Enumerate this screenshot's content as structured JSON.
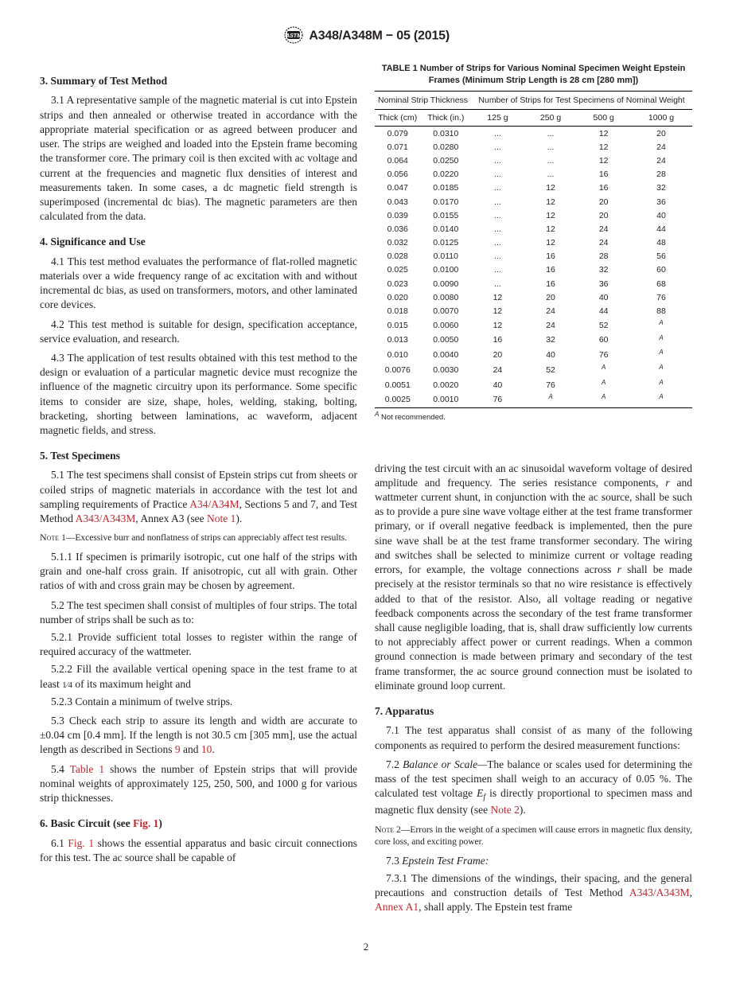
{
  "header": {
    "standard": "A348/A348M − 05 (2015)"
  },
  "left": {
    "s3_head": "3.  Summary of Test Method",
    "s3_1": "3.1  A representative sample of the magnetic material is cut into Epstein strips and then annealed or otherwise treated in accordance with the appropriate material specification or as agreed between producer and user. The strips are weighed and loaded into the Epstein frame becoming the transformer core. The primary coil is then excited with ac voltage and current at the frequencies and magnetic flux densities of interest and measurements taken. In some cases, a dc magnetic field strength is superimposed (incremental dc bias). The magnetic parameters are then calculated from the data.",
    "s4_head": "4.  Significance and Use",
    "s4_1": "4.1  This test method evaluates the performance of flat-rolled magnetic materials over a wide frequency range of ac excitation with and without incremental dc bias, as used on transformers, motors, and other laminated core devices.",
    "s4_2": "4.2 This test method is suitable for design, specification acceptance, service evaluation, and research.",
    "s4_3": "4.3 The application of test results obtained with this test method to the design or evaluation of a particular magnetic device must recognize the influence of the magnetic circuitry upon its performance. Some specific items to consider are size, shape, holes, welding, staking, bolting, bracketing, shorting between laminations, ac waveform, adjacent magnetic fields, and stress.",
    "s5_head": "5.  Test Specimens",
    "s5_1a": "5.1 The test specimens shall consist of Epstein strips cut from sheets or coiled strips of magnetic materials in accordance with the test lot and sampling requirements of Practice ",
    "s5_1_ref1": "A34/A34M",
    "s5_1b": ", Sections 5 and 7, and Test Method ",
    "s5_1_ref2": "A343/A343M",
    "s5_1c": ", Annex A3 (see ",
    "s5_1_ref3": "Note 1",
    "s5_1d": ").",
    "note1_label": "Note",
    "note1": " 1—Excessive burr and nonflatness of strips can appreciably affect test results.",
    "s5_1_1": "5.1.1 If specimen is primarily isotropic, cut one half of the strips with grain and one-half cross grain. If anisotropic, cut all with grain. Other ratios of with and cross grain may be chosen by agreement.",
    "s5_2": "5.2  The test specimen shall consist of multiples of four strips. The total number of strips shall be such as to:",
    "s5_2_1": "5.2.1 Provide sufficient total losses to register within the range of required accuracy of the wattmeter.",
    "s5_2_2a": "5.2.2 Fill the available vertical opening space in the test frame to at least ",
    "s5_2_2_frac": "1⁄4",
    "s5_2_2b": " of its maximum height and",
    "s5_2_3": "5.2.3 Contain a minimum of twelve strips.",
    "s5_3a": "5.3 Check each strip to assure its length and width are accurate to ±0.04 cm [0.4 mm]. If the length is not 30.5 cm [305 mm], use the actual length as described in Sections ",
    "s5_3_ref1": "9",
    "s5_3b": " and ",
    "s5_3_ref2": "10",
    "s5_3c": ".",
    "s5_4a": "5.4 ",
    "s5_4_ref": "Table 1",
    "s5_4b": " shows the number of Epstein strips that will provide nominal weights of approximately 125, 250, 500, and 1000 g for various strip thicknesses.",
    "s6_head_a": "6.  Basic Circuit (see ",
    "s6_head_ref": "Fig. 1",
    "s6_head_b": ")",
    "s6_1a": "6.1 ",
    "s6_1_ref": "Fig. 1",
    "s6_1b": " shows the essential apparatus and basic circuit connections for this test. The ac source shall be capable of"
  },
  "right": {
    "table_title": "TABLE 1 Number of Strips for Various Nominal Specimen Weight Epstein Frames (Minimum Strip Length is 28 cm [280 mm])",
    "th_group1": "Nominal Strip Thickness",
    "th_group2": "Number of Strips for Test Specimens of Nominal Weight",
    "th_cm": "Thick (cm)",
    "th_in": "Thick (in.)",
    "th_125": "125 g",
    "th_250": "250 g",
    "th_500": "500 g",
    "th_1000": "1000 g",
    "rows": [
      [
        "0.079",
        "0.0310",
        "...",
        "...",
        "12",
        "20"
      ],
      [
        "0.071",
        "0.0280",
        "...",
        "...",
        "12",
        "24"
      ],
      [
        "0.064",
        "0.0250",
        "...",
        "...",
        "12",
        "24"
      ],
      [
        "0.056",
        "0.0220",
        "...",
        "...",
        "16",
        "28"
      ],
      [
        "0.047",
        "0.0185",
        "...",
        "12",
        "16",
        "32"
      ],
      [
        "0.043",
        "0.0170",
        "...",
        "12",
        "20",
        "36"
      ],
      [
        "0.039",
        "0.0155",
        "...",
        "12",
        "20",
        "40"
      ],
      [
        "0.036",
        "0.0140",
        "...",
        "12",
        "24",
        "44"
      ],
      [
        "0.032",
        "0.0125",
        "...",
        "12",
        "24",
        "48"
      ],
      [
        "0.028",
        "0.0110",
        "...",
        "16",
        "28",
        "56"
      ],
      [
        "0.025",
        "0.0100",
        "...",
        "16",
        "32",
        "60"
      ],
      [
        "0.023",
        "0.0090",
        "...",
        "16",
        "36",
        "68"
      ],
      [
        "0.020",
        "0.0080",
        "12",
        "20",
        "40",
        "76"
      ],
      [
        "0.018",
        "0.0070",
        "12",
        "24",
        "44",
        "88"
      ],
      [
        "0.015",
        "0.0060",
        "12",
        "24",
        "52",
        "A"
      ],
      [
        "0.013",
        "0.0050",
        "16",
        "32",
        "60",
        "A"
      ],
      [
        "0.010",
        "0.0040",
        "20",
        "40",
        "76",
        "A"
      ],
      [
        "0.0076",
        "0.0030",
        "24",
        "52",
        "A",
        "A"
      ],
      [
        "0.0051",
        "0.0020",
        "40",
        "76",
        "A",
        "A"
      ],
      [
        "0.0025",
        "0.0010",
        "76",
        "A",
        "A",
        "A"
      ]
    ],
    "table_note_sup": "A",
    "table_note": " Not recommended.",
    "continue_para": "driving the test circuit with an ac sinusoidal waveform voltage of desired amplitude and frequency. The series resistance components, r and wattmeter current shunt, in conjunction with the ac source, shall be such as to provide a pure sine wave voltage either at the test frame transformer primary, or if overall negative feedback is implemented, then the pure sine wave shall be at the test frame transformer secondary. The wiring and switches shall be selected to minimize current or voltage reading errors, for example, the voltage connections across r shall be made precisely at the resistor terminals so that no wire resistance is effectively added to that of the resistor. Also, all voltage reading or negative feedback components across the secondary of the test frame transformer shall cause negligible loading, that is, shall draw sufficiently low currents to not appreciably affect power or current readings. When a common ground connection is made between primary and secondary of the test frame transformer, the ac source ground connection must be isolated to eliminate ground loop current.",
    "s7_head": "7.  Apparatus",
    "s7_1": "7.1 The test apparatus shall consist of as many of the following components as required to perform the desired measurement functions:",
    "s7_2a": "7.2 ",
    "s7_2_ital": "Balance or Scale—",
    "s7_2b": "The balance or scales used for determining the mass of the test specimen shall weigh to an accuracy of 0.05 %. The calculated test voltage ",
    "s7_2_var": "E",
    "s7_2_sub": "f",
    "s7_2c": " is directly proportional to specimen mass and magnetic flux density (see ",
    "s7_2_ref": "Note 2",
    "s7_2d": ").",
    "note2_label": "Note",
    "note2": " 2—Errors in the weight of a specimen will cause errors in magnetic flux density, core loss, and exciting power.",
    "s7_3a": "7.3 ",
    "s7_3_ital": "Epstein Test Frame:",
    "s7_3_1a": "7.3.1 The dimensions of the windings, their spacing, and the general precautions and construction details of Test Method ",
    "s7_3_1_ref1": "A343/A343M",
    "s7_3_1b": ", ",
    "s7_3_1_ref2": "Annex A1",
    "s7_3_1c": ", shall apply. The Epstein test frame"
  },
  "page": "2"
}
